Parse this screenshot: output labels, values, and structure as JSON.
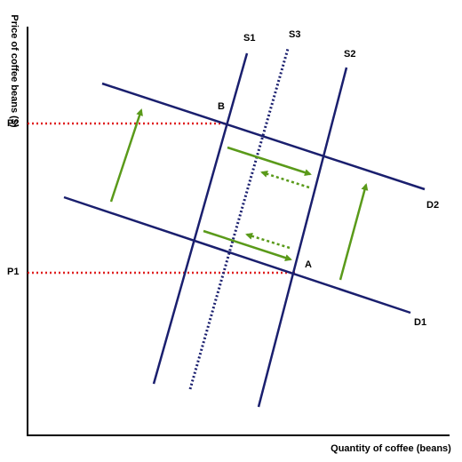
{
  "axes": {
    "y_label": "Price of coffee beans ($)",
    "x_label": "Quantity of coffee (beans)"
  },
  "curves": [
    {
      "label": "S1"
    },
    {
      "label": "S3"
    },
    {
      "label": "S2"
    },
    {
      "label": "D2"
    },
    {
      "label": "D1"
    }
  ],
  "points": [
    {
      "label": "B"
    },
    {
      "label": "A"
    }
  ],
  "prices": [
    {
      "label": "P2"
    },
    {
      "label": "P1"
    }
  ]
}
